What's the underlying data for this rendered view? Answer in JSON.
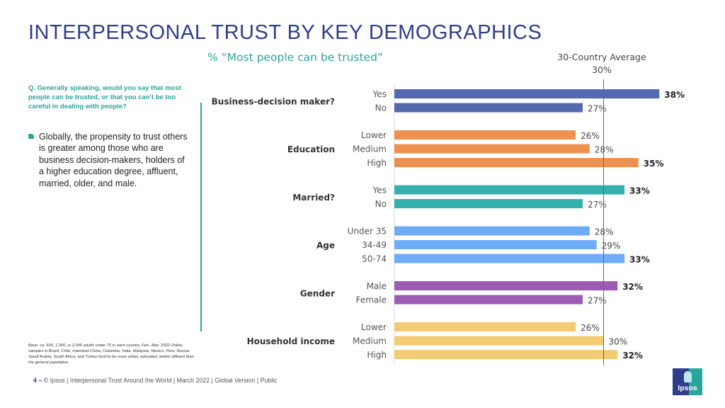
{
  "title": "INTERPERSONAL TRUST BY KEY DEMOGRAPHICS",
  "subtitle": "% “Most people can be trusted”",
  "question": "Q. Generally speaking, would you say that most people can be trusted, or that you can't be too careful in dealing with people?",
  "bullet": "Globally, the propensity to trust others is greater among those who are business decision-makers, holders of a higher education degree, affluent, married, older, and male.",
  "base_note": "Base: ca. 500, 1,000, or 2,000 adults under 75 in each country, Feb.–Mar. 2022 Online samples in Brazil, Chile, mainland China, Colombia, India, Malaysia, Mexico, Peru, Russia, Saudi Arabia, South Africa, and Turkey tend to be more urban, educated, and/or affluent than the general population.",
  "footer": {
    "page": "4 –",
    "text": "© Ipsos | Interpersonal Trust Around the World | March 2022 | Global Version | Public"
  },
  "logo_text": "Ipsos",
  "average": {
    "label_line1": "30-Country Average",
    "label_line2": "30%"
  },
  "chart_data": {
    "type": "bar",
    "orientation": "horizontal",
    "title": "% “Most people can be trusted”",
    "xlabel": "",
    "ylabel": "",
    "xlim": [
      0,
      40
    ],
    "grid": false,
    "reference_line": {
      "label": "30-Country Average",
      "value": 30
    },
    "groups": [
      {
        "name": "Business-decision maker?",
        "color": "#5468b0",
        "items": [
          {
            "label": "Yes",
            "value": 38,
            "bold": true
          },
          {
            "label": "No",
            "value": 27,
            "bold": false
          }
        ]
      },
      {
        "name": "Education",
        "color": "#ee914f",
        "items": [
          {
            "label": "Lower",
            "value": 26,
            "bold": false
          },
          {
            "label": "Medium",
            "value": 28,
            "bold": false
          },
          {
            "label": "High",
            "value": 35,
            "bold": true
          }
        ]
      },
      {
        "name": "Married?",
        "color": "#33b1ad",
        "items": [
          {
            "label": "Yes",
            "value": 33,
            "bold": true
          },
          {
            "label": "No",
            "value": 27,
            "bold": false
          }
        ]
      },
      {
        "name": "Age",
        "color": "#6eacf7",
        "items": [
          {
            "label": "Under 35",
            "value": 28,
            "bold": false
          },
          {
            "label": "34-49",
            "value": 29,
            "bold": false
          },
          {
            "label": "50-74",
            "value": 33,
            "bold": true
          }
        ]
      },
      {
        "name": "Gender",
        "color": "#9c5cb3",
        "items": [
          {
            "label": "Male",
            "value": 32,
            "bold": true
          },
          {
            "label": "Female",
            "value": 27,
            "bold": false
          }
        ]
      },
      {
        "name": "Household income",
        "color": "#f2cb72",
        "items": [
          {
            "label": "Lower",
            "value": 26,
            "bold": false
          },
          {
            "label": "Medium",
            "value": 30,
            "bold": false
          },
          {
            "label": "High",
            "value": 32,
            "bold": true
          }
        ]
      }
    ]
  }
}
